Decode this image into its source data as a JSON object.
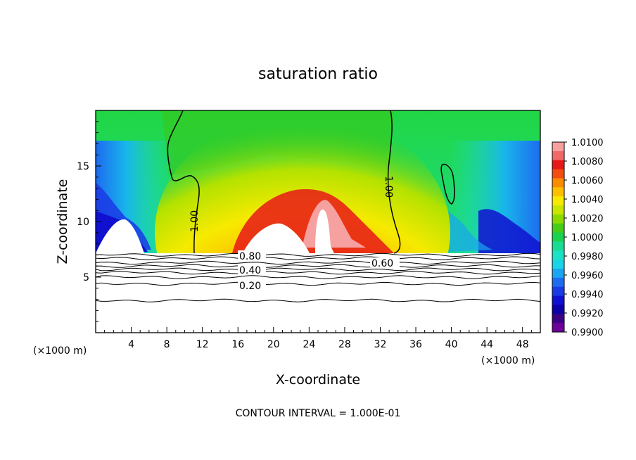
{
  "chart_data": {
    "type": "heatmap",
    "title": "saturation ratio",
    "xlabel": "X-coordinate",
    "ylabel": "Z-coordinate",
    "x_unit": "(×1000 m)",
    "x_range": [
      0,
      50
    ],
    "z_range": [
      0,
      20
    ],
    "x_ticks": [
      "4",
      "8",
      "12",
      "16",
      "20",
      "24",
      "28",
      "32",
      "36",
      "40",
      "44",
      "48"
    ],
    "y_ticks": [
      "5",
      "10",
      "15"
    ],
    "colorbar": {
      "labels": [
        "1.0100",
        "1.0080",
        "1.0060",
        "1.0040",
        "1.0020",
        "1.0000",
        "0.9980",
        "0.9960",
        "0.9940",
        "0.9920",
        "0.9900"
      ],
      "colors": [
        "#f8a0a0",
        "#f06868",
        "#e81818",
        "#f44d10",
        "#fa8c00",
        "#fdbf00",
        "#f6ea00",
        "#c8e600",
        "#8ada00",
        "#46cc19",
        "#1ad24d",
        "#19db93",
        "#1de1c4",
        "#18d4e6",
        "#1aa5f0",
        "#1d6cf0",
        "#1a3ae6",
        "#1010d0",
        "#0c00a8",
        "#3c0084",
        "#6e009a"
      ]
    },
    "contour_labels": [
      {
        "text": "1.00"
      },
      {
        "text": "1.00"
      },
      {
        "text": "0.80"
      },
      {
        "text": "0.60"
      },
      {
        "text": "0.40"
      },
      {
        "text": "0.20"
      }
    ],
    "contour_interval_text": "CONTOUR INTERVAL = 1.000E-01",
    "grid": false
  }
}
